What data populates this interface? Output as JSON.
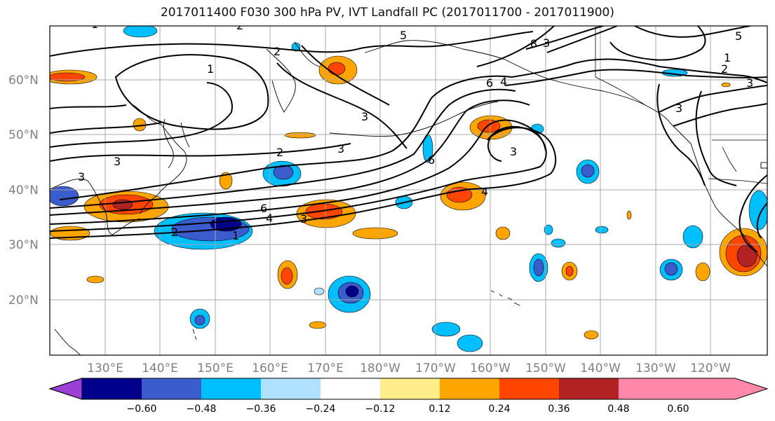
{
  "title": "2017011400 F030 300 hPa PV, IVT Landfall PC (2017011700 - 2017011900)",
  "lat_labels": [
    "60°N",
    "50°N",
    "40°N",
    "30°N",
    "20°N"
  ],
  "lon_labels": [
    "130°E",
    "140°E",
    "150°E",
    "160°E",
    "170°E",
    "180°W",
    "170°W",
    "160°W",
    "150°W",
    "140°W",
    "130°W",
    "120°W"
  ],
  "colorbar": {
    "colors": [
      "#9b3fd6",
      "#00008b",
      "#3a5ccc",
      "#00bfff",
      "#b0e2ff",
      "#ffffff",
      "#ffec8b",
      "#ffa500",
      "#ff4500",
      "#b22222",
      "#ff88aa"
    ],
    "tick_labels": [
      "−0.60",
      "−0.48",
      "−0.36",
      "−0.24",
      "−0.12",
      "0.12",
      "0.24",
      "0.36",
      "0.48",
      "0.60"
    ]
  },
  "contour_labels": [
    "1",
    "2",
    "3",
    "4",
    "5",
    "6",
    "8",
    "1",
    "2",
    "3",
    "2",
    "3",
    "1",
    "2",
    "3",
    "4",
    "6",
    "3",
    "3",
    "4",
    "6",
    "3",
    "5",
    "1",
    "2",
    "3",
    "3"
  ]
}
